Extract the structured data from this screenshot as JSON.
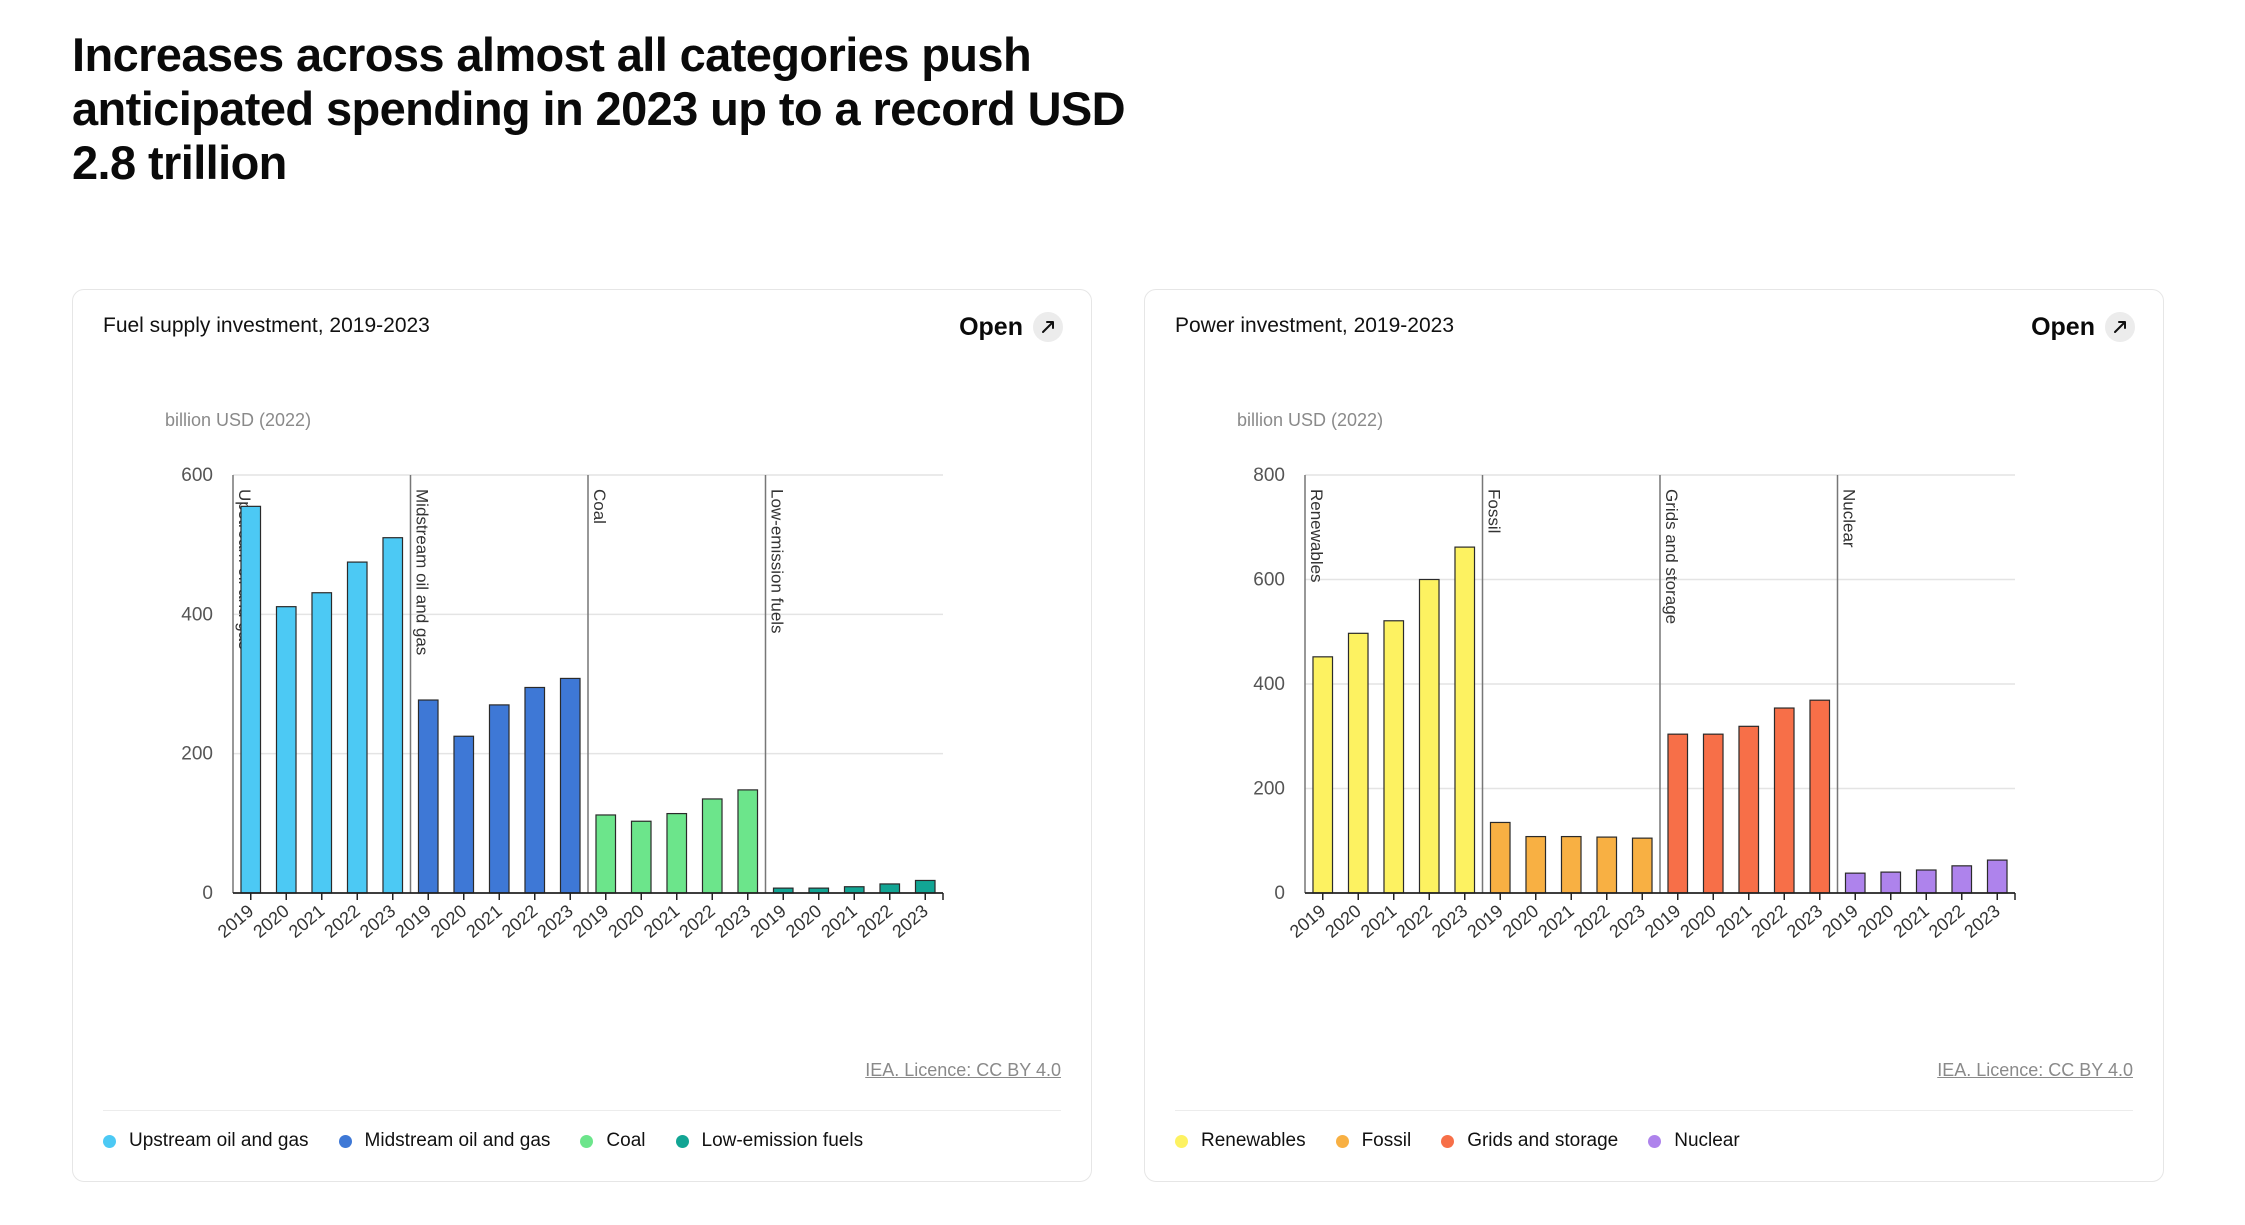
{
  "page": {
    "title": "Increases across almost all categories push anticipated spending in 2023 up to a record USD 2.8 trillion"
  },
  "open_label": "Open",
  "licence": "IEA. Licence: CC BY 4.0",
  "icons": {
    "open": "external-link-icon"
  },
  "chart_data": [
    {
      "type": "bar",
      "title": "Fuel supply investment, 2019-2023",
      "ylabel": "billion USD (2022)",
      "ylim": [
        0,
        600
      ],
      "yticks": [
        0,
        200,
        400,
        600
      ],
      "grid": true,
      "legend_position": "bottom",
      "categories": [
        "2019",
        "2020",
        "2021",
        "2022",
        "2023"
      ],
      "series": [
        {
          "name": "Upstream oil and gas",
          "color": "#4cc9f4",
          "values": [
            555,
            411,
            431,
            475,
            510
          ]
        },
        {
          "name": "Midstream oil and gas",
          "color": "#3e78d6",
          "values": [
            277,
            225,
            270,
            295,
            308
          ]
        },
        {
          "name": "Coal",
          "color": "#6ce58b",
          "values": [
            112,
            103,
            114,
            135,
            148
          ]
        },
        {
          "name": "Low-emission fuels",
          "color": "#12a594",
          "values": [
            7,
            7,
            9,
            13,
            18
          ]
        }
      ]
    },
    {
      "type": "bar",
      "title": "Power investment, 2019-2023",
      "ylabel": "billion USD (2022)",
      "ylim": [
        0,
        800
      ],
      "yticks": [
        0,
        200,
        400,
        600,
        800
      ],
      "grid": true,
      "legend_position": "bottom",
      "categories": [
        "2019",
        "2020",
        "2021",
        "2022",
        "2023"
      ],
      "series": [
        {
          "name": "Renewables",
          "color": "#fdf261",
          "values": [
            452,
            497,
            521,
            600,
            662
          ]
        },
        {
          "name": "Fossil",
          "color": "#f8b043",
          "values": [
            135,
            108,
            108,
            107,
            105
          ]
        },
        {
          "name": "Grids and storage",
          "color": "#f76f48",
          "values": [
            304,
            304,
            319,
            354,
            369
          ]
        },
        {
          "name": "Nuclear",
          "color": "#ae83ec",
          "values": [
            38,
            40,
            44,
            52,
            63
          ]
        }
      ]
    }
  ]
}
